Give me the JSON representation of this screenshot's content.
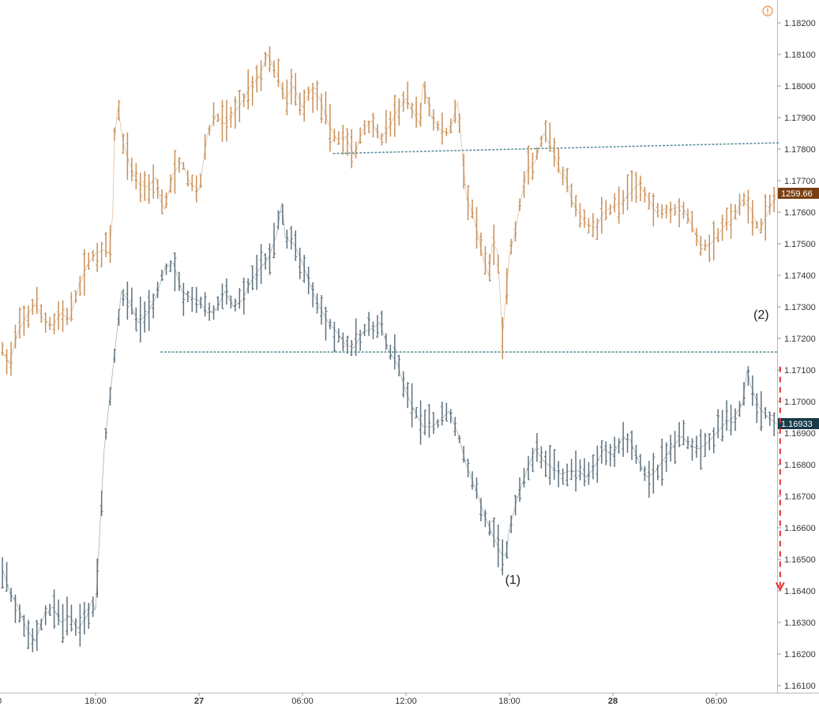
{
  "chart_data": {
    "type": "line",
    "title": "",
    "xlabel": "",
    "ylabel": "",
    "ylim": [
      1.1606,
      1.1826
    ],
    "y_ticks": [
      "1.18200",
      "1.18100",
      "1.18000",
      "1.17900",
      "1.17800",
      "1.17700",
      "1.17600",
      "1.17500",
      "1.17400",
      "1.17300",
      "1.17200",
      "1.17100",
      "1.17000",
      "1.16900",
      "1.16800",
      "1.16700",
      "1.16600",
      "1.16500",
      "1.16400",
      "1.16300",
      "1.16200",
      "1.16100"
    ],
    "x_ticks": [
      {
        "label": "18:00",
        "hour": 18,
        "bold": false
      },
      {
        "label": "27",
        "hour": 24,
        "bold": true
      },
      {
        "label": "06:00",
        "hour": 30,
        "bold": false
      },
      {
        "label": "12:00",
        "hour": 36,
        "bold": false
      },
      {
        "label": "18:00",
        "hour": 42,
        "bold": false
      },
      {
        "label": "28",
        "hour": 48,
        "bold": true
      },
      {
        "label": "06:00",
        "hour": 54,
        "bold": false
      }
    ],
    "x_range_hours": [
      12.6,
      57.8
    ],
    "series": [
      {
        "color": "#c8905a",
        "last_label": "1259.66",
        "last_label_color": "#7a3e12",
        "x": [
          12.6,
          13.0,
          13.5,
          14.0,
          14.5,
          15.0,
          15.5,
          16.0,
          16.5,
          17.0,
          17.5,
          18.0,
          18.5,
          18.8,
          19.0,
          19.1,
          19.3,
          19.6,
          20.0,
          20.5,
          21.0,
          21.5,
          21.8,
          22.0,
          22.5,
          23.0,
          23.5,
          24.0,
          24.5,
          25.0,
          25.5,
          26.0,
          26.5,
          27.0,
          27.5,
          28.0,
          28.5,
          29.0,
          29.5,
          30.0,
          30.5,
          31.0,
          31.5,
          32.0,
          32.5,
          33.0,
          33.5,
          34.0,
          34.5,
          35.0,
          35.5,
          36.0,
          36.5,
          36.8,
          37.0,
          37.5,
          38.0,
          38.5,
          39.0,
          39.5,
          40.0,
          40.5,
          40.8,
          41.0,
          41.3,
          41.6,
          42.0,
          42.3,
          42.6,
          43.0,
          43.5,
          44.0,
          44.5,
          45.0,
          45.2,
          45.6,
          46.0,
          46.5,
          47.0,
          47.5,
          48.0,
          48.5,
          49.0,
          49.5,
          50.0,
          50.5,
          51.0,
          51.5,
          52.0,
          52.5,
          53.0,
          53.5,
          54.0,
          54.5,
          55.0,
          55.5,
          56.0,
          56.5,
          57.0,
          57.5
        ],
        "y": [
          1.1716,
          1.1712,
          1.1722,
          1.1727,
          1.1731,
          1.1726,
          1.1724,
          1.1728,
          1.1726,
          1.1736,
          1.1743,
          1.1747,
          1.1748,
          1.1747,
          1.176,
          1.1784,
          1.1793,
          1.1782,
          1.1775,
          1.1769,
          1.1768,
          1.1771,
          1.1763,
          1.1761,
          1.1772,
          1.1776,
          1.1769,
          1.1767,
          1.1785,
          1.1791,
          1.1788,
          1.1791,
          1.1795,
          1.18,
          1.1803,
          1.181,
          1.1804,
          1.1796,
          1.18,
          1.1793,
          1.1799,
          1.1796,
          1.1788,
          1.1783,
          1.1784,
          1.1778,
          1.1786,
          1.1789,
          1.1783,
          1.1787,
          1.1792,
          1.1796,
          1.1791,
          1.1788,
          1.1801,
          1.179,
          1.1786,
          1.1785,
          1.1795,
          1.1765,
          1.1757,
          1.1745,
          1.174,
          1.175,
          1.1748,
          1.1721,
          1.1746,
          1.1753,
          1.1762,
          1.1773,
          1.1776,
          1.1785,
          1.178,
          1.1772,
          1.1772,
          1.1764,
          1.176,
          1.1756,
          1.1755,
          1.176,
          1.1762,
          1.1763,
          1.1766,
          1.1769,
          1.1765,
          1.176,
          1.1761,
          1.1761,
          1.1762,
          1.1757,
          1.175,
          1.1749,
          1.1752,
          1.1756,
          1.1758,
          1.1764,
          1.1761,
          1.1754,
          1.176,
          1.1766
        ]
      },
      {
        "color": "#5f717c",
        "last_label": "1.16933",
        "last_label_color": "#163a4a",
        "x": [
          12.6,
          13.0,
          13.5,
          14.0,
          14.5,
          15.0,
          15.5,
          16.0,
          16.5,
          17.0,
          17.5,
          17.8,
          18.0,
          18.5,
          19.0,
          19.5,
          20.0,
          20.5,
          21.0,
          21.5,
          22.0,
          22.5,
          23.0,
          23.5,
          24.0,
          24.5,
          25.0,
          25.5,
          26.0,
          26.5,
          27.0,
          27.5,
          28.0,
          28.5,
          28.8,
          29.0,
          29.5,
          30.0,
          30.5,
          31.0,
          31.5,
          32.0,
          32.5,
          33.0,
          33.5,
          34.0,
          34.5,
          35.0,
          35.5,
          36.0,
          36.5,
          37.0,
          37.5,
          38.0,
          38.5,
          39.0,
          39.5,
          40.0,
          40.5,
          41.0,
          41.5,
          41.8,
          42.0,
          42.5,
          43.0,
          43.5,
          44.0,
          44.5,
          45.0,
          45.5,
          46.0,
          46.5,
          47.0,
          47.5,
          48.0,
          48.5,
          49.0,
          49.5,
          50.0,
          50.5,
          51.0,
          51.5,
          52.0,
          52.5,
          53.0,
          53.5,
          54.0,
          54.5,
          55.0,
          55.5,
          55.8,
          56.0,
          56.5,
          57.0,
          57.5
        ],
        "y": [
          1.1647,
          1.164,
          1.1635,
          1.1628,
          1.1624,
          1.1632,
          1.1635,
          1.163,
          1.1632,
          1.1628,
          1.1632,
          1.1637,
          1.1634,
          1.1685,
          1.171,
          1.1735,
          1.1731,
          1.1725,
          1.1728,
          1.1733,
          1.1742,
          1.1744,
          1.1735,
          1.1733,
          1.1732,
          1.1728,
          1.1729,
          1.1735,
          1.173,
          1.1732,
          1.1738,
          1.1742,
          1.1745,
          1.1753,
          1.1763,
          1.1752,
          1.175,
          1.1744,
          1.1736,
          1.173,
          1.1725,
          1.1722,
          1.1718,
          1.1717,
          1.1722,
          1.1723,
          1.1725,
          1.1716,
          1.1712,
          1.1703,
          1.1697,
          1.1692,
          1.1692,
          1.1694,
          1.1697,
          1.169,
          1.168,
          1.1673,
          1.1665,
          1.1658,
          1.1652,
          1.1651,
          1.166,
          1.167,
          1.1678,
          1.1685,
          1.1681,
          1.1679,
          1.1677,
          1.1678,
          1.1678,
          1.1676,
          1.168,
          1.1685,
          1.1683,
          1.1688,
          1.1688,
          1.1681,
          1.1676,
          1.1678,
          1.1682,
          1.1686,
          1.1689,
          1.1686,
          1.1685,
          1.1687,
          1.169,
          1.1693,
          1.1695,
          1.1699,
          1.171,
          1.1705,
          1.1698,
          1.1695,
          1.1693
        ]
      }
    ],
    "annotations": [
      {
        "text": "(1)",
        "x": 42.2,
        "y": 1.16422
      },
      {
        "text": "(2)",
        "x": 56.6,
        "y": 1.17262
      }
    ],
    "trendlines": [
      {
        "x1": 31.8,
        "y1": 1.17786,
        "x2": 57.6,
        "y2": 1.1782,
        "color": "#5b8f9a"
      },
      {
        "x1": 21.8,
        "y1": 1.17157,
        "x2": 57.6,
        "y2": 1.17157,
        "color": "#5b8f9a"
      }
    ],
    "projection_arrow": {
      "x": 57.7,
      "y1": 1.17111,
      "y2": 1.16404,
      "color": "#e03030"
    },
    "warning_icon_color": "#f0883a"
  }
}
